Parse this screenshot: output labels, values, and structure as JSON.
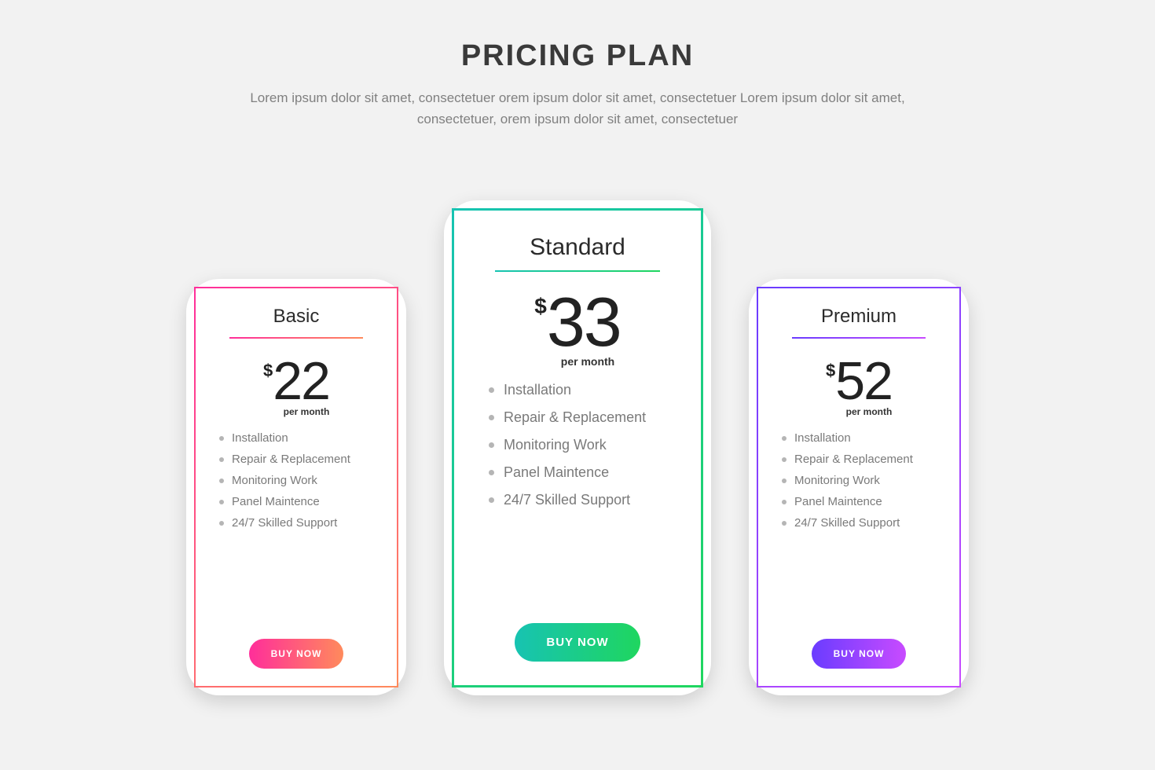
{
  "header": {
    "title": "PRICING PLAN",
    "subtitle": "Lorem ipsum dolor sit amet, consectetuer orem ipsum dolor sit amet, consectetuer Lorem ipsum dolor sit amet, consectetuer, orem ipsum dolor sit amet, consectetuer"
  },
  "background_color": "#f2f2f2",
  "card_bg": "#ffffff",
  "text_heading_color": "#3a3a3a",
  "text_sub_color": "#808080",
  "feature_text_color": "#7a7a7a",
  "plans": [
    {
      "name": "Basic",
      "currency": "$",
      "price": "22",
      "period": "per month",
      "features": [
        "Installation",
        "Repair & Replacement",
        "Monitoring Work",
        "Panel Maintence",
        "24/7 Skilled Support"
      ],
      "cta": "BUY NOW",
      "size": "small",
      "border_gradient": "linear-gradient(135deg,#ff2e9a 0%,#ff8a5c 100%)",
      "divider_gradient": "linear-gradient(90deg,#ff2e9a 0%,#ff8a5c 100%)",
      "button_gradient": "linear-gradient(90deg,#ff2e9a 0%,#ff8a5c 100%)"
    },
    {
      "name": "Standard",
      "currency": "$",
      "price": "33",
      "period": "per month",
      "features": [
        "Installation",
        "Repair & Replacement",
        "Monitoring Work",
        "Panel Maintence",
        "24/7 Skilled Support"
      ],
      "cta": "BUY NOW",
      "size": "large",
      "border_gradient": "linear-gradient(135deg,#17c3b2 0%,#1fd65f 100%)",
      "divider_gradient": "linear-gradient(90deg,#17c3b2 0%,#1fd65f 100%)",
      "button_gradient": "linear-gradient(90deg,#17c3b2 0%,#1fd65f 100%)"
    },
    {
      "name": "Premium",
      "currency": "$",
      "price": "52",
      "period": "per month",
      "features": [
        "Installation",
        "Repair & Replacement",
        "Monitoring Work",
        "Panel Maintence",
        "24/7 Skilled Support"
      ],
      "cta": "BUY NOW",
      "size": "small",
      "border_gradient": "linear-gradient(135deg,#6a3cff 0%,#c84bff 100%)",
      "divider_gradient": "linear-gradient(90deg,#6a3cff 0%,#c84bff 100%)",
      "button_gradient": "linear-gradient(90deg,#6a3cff 0%,#c84bff 100%)"
    }
  ]
}
